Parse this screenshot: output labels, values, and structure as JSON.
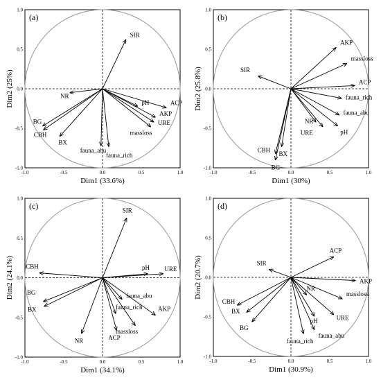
{
  "chart_data": [
    {
      "type": "scatter",
      "panel": "(a)",
      "xlabel": "Dim1 (33.6%)",
      "ylabel": "Dim2 (25%)",
      "xlim": [
        -1.0,
        1.0
      ],
      "ylim": [
        -1.0,
        1.0
      ],
      "ticks": [
        "-1.0",
        "-0.5",
        "0.0",
        "0.5",
        "1.0"
      ],
      "vectors": [
        {
          "name": "SIR",
          "x": 0.3,
          "y": 0.62
        },
        {
          "name": "NR",
          "x": -0.42,
          "y": -0.05
        },
        {
          "name": "BG",
          "x": -0.77,
          "y": -0.47
        },
        {
          "name": "CBH",
          "x": -0.76,
          "y": -0.52
        },
        {
          "name": "BX",
          "x": -0.55,
          "y": -0.6
        },
        {
          "name": "fauna_abu",
          "x": -0.02,
          "y": -0.72
        },
        {
          "name": "fauna_rich",
          "x": 0.08,
          "y": -0.73
        },
        {
          "name": "pH",
          "x": 0.45,
          "y": -0.22
        },
        {
          "name": "ACP",
          "x": 0.82,
          "y": -0.24
        },
        {
          "name": "AKP",
          "x": 0.68,
          "y": -0.36
        },
        {
          "name": "URE",
          "x": 0.66,
          "y": -0.42
        },
        {
          "name": "massloss",
          "x": 0.62,
          "y": -0.48
        }
      ]
    },
    {
      "type": "scatter",
      "panel": "(b)",
      "xlabel": "Dim1 (30%)",
      "ylabel": "Dim2 (25.8%)",
      "xlim": [
        -1.0,
        1.0
      ],
      "ylim": [
        -1.0,
        1.0
      ],
      "ticks": [
        "-1.0",
        "-0.5",
        "0.0",
        "0.5",
        "1.0"
      ],
      "vectors": [
        {
          "name": "AKP",
          "x": 0.58,
          "y": 0.52
        },
        {
          "name": "massloss",
          "x": 0.72,
          "y": 0.32
        },
        {
          "name": "ACP",
          "x": 0.82,
          "y": 0.04
        },
        {
          "name": "SIR",
          "x": -0.42,
          "y": 0.16
        },
        {
          "name": "fauna_rich",
          "x": 0.65,
          "y": -0.12
        },
        {
          "name": "fauna_abu",
          "x": 0.62,
          "y": -0.33
        },
        {
          "name": "NR",
          "x": 0.32,
          "y": -0.42
        },
        {
          "name": "URE",
          "x": 0.41,
          "y": -0.48
        },
        {
          "name": "pH",
          "x": 0.6,
          "y": -0.47
        },
        {
          "name": "BX",
          "x": -0.12,
          "y": -0.73
        },
        {
          "name": "CBH",
          "x": -0.2,
          "y": -0.82
        },
        {
          "name": "BG",
          "x": -0.2,
          "y": -0.9
        }
      ]
    },
    {
      "type": "scatter",
      "panel": "(c)",
      "xlabel": "Dim1 (34.1%)",
      "ylabel": "Dim2 (24.1%)",
      "xlim": [
        -1.0,
        1.0
      ],
      "ylim": [
        -1.0,
        1.0
      ],
      "ticks": [
        "-1.0",
        "-0.5",
        "0.0",
        "0.5",
        "1.0"
      ],
      "vectors": [
        {
          "name": "SIR",
          "x": 0.31,
          "y": 0.75
        },
        {
          "name": "CBH",
          "x": -0.81,
          "y": 0.06
        },
        {
          "name": "pH",
          "x": 0.58,
          "y": 0.05
        },
        {
          "name": "URE",
          "x": 0.78,
          "y": 0.05
        },
        {
          "name": "BG",
          "x": -0.76,
          "y": -0.3
        },
        {
          "name": "BX",
          "x": -0.75,
          "y": -0.36
        },
        {
          "name": "fauna_abu",
          "x": 0.25,
          "y": -0.27
        },
        {
          "name": "AKP",
          "x": 0.68,
          "y": -0.47
        },
        {
          "name": "fauna_rich",
          "x": 0.17,
          "y": -0.45
        },
        {
          "name": "NR",
          "x": -0.27,
          "y": -0.7
        },
        {
          "name": "ACP",
          "x": 0.18,
          "y": -0.66
        },
        {
          "name": "massloss",
          "x": 0.42,
          "y": -0.6
        }
      ]
    },
    {
      "type": "scatter",
      "panel": "(d)",
      "xlabel": "Dim1 (30.9%)",
      "ylabel": "Dim2 (20.7%)",
      "xlim": [
        -1.0,
        1.0
      ],
      "ylim": [
        -1.0,
        1.0
      ],
      "ticks": [
        "-1.0",
        "-0.5",
        "0.0",
        "0.5",
        "1.0"
      ],
      "vectors": [
        {
          "name": "ACP",
          "x": 0.55,
          "y": 0.26
        },
        {
          "name": "SIR",
          "x": -0.28,
          "y": 0.1
        },
        {
          "name": "AKP",
          "x": 0.83,
          "y": -0.04
        },
        {
          "name": "massloss",
          "x": 0.66,
          "y": -0.27
        },
        {
          "name": "CBH",
          "x": -0.69,
          "y": -0.35
        },
        {
          "name": "NR",
          "x": 0.2,
          "y": -0.22
        },
        {
          "name": "BX",
          "x": -0.57,
          "y": -0.44
        },
        {
          "name": "URE",
          "x": 0.55,
          "y": -0.47
        },
        {
          "name": "BG",
          "x": -0.5,
          "y": -0.56
        },
        {
          "name": "pH",
          "x": 0.3,
          "y": -0.49
        },
        {
          "name": "fauna_rich",
          "x": 0.16,
          "y": -0.71
        },
        {
          "name": "fauna_abu",
          "x": 0.3,
          "y": -0.66
        }
      ]
    }
  ]
}
